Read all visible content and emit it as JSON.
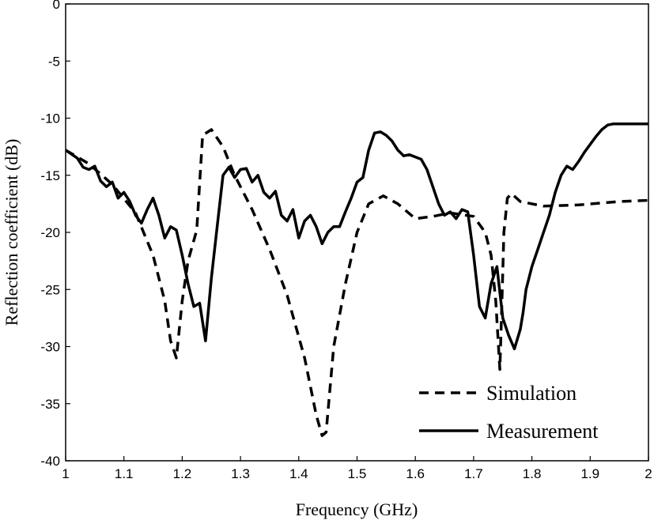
{
  "chart_data": {
    "type": "line",
    "title": "",
    "xlabel": "Frequency (GHz)",
    "ylabel": "Reflection coefficient (dB)",
    "xlim": [
      1,
      2
    ],
    "ylim": [
      -40,
      0
    ],
    "xticks": [
      1,
      1.1,
      1.2,
      1.3,
      1.4,
      1.5,
      1.6,
      1.7,
      1.8,
      1.9,
      2
    ],
    "xtick_labels": [
      "1",
      "1.1",
      "1.2",
      "1.3",
      "1.4",
      "1.5",
      "1.6",
      "1.7",
      "1.8",
      "1.9",
      "2"
    ],
    "yticks": [
      0,
      -5,
      -10,
      -15,
      -20,
      -25,
      -30,
      -35,
      -40
    ],
    "ytick_labels": [
      "0",
      "-5",
      "-10",
      "-15",
      "-20",
      "-25",
      "-30",
      "-35",
      "-40"
    ],
    "grid": false,
    "legend_position": "bottom-right",
    "series": [
      {
        "name": "Simulation",
        "style": "dashed",
        "color": "#000000",
        "x": [
          1.0,
          1.04,
          1.08,
          1.12,
          1.15,
          1.17,
          1.18,
          1.19,
          1.2,
          1.21,
          1.225,
          1.235,
          1.25,
          1.27,
          1.29,
          1.32,
          1.35,
          1.38,
          1.41,
          1.43,
          1.44,
          1.447,
          1.46,
          1.48,
          1.5,
          1.52,
          1.545,
          1.57,
          1.6,
          1.63,
          1.66,
          1.7,
          1.72,
          1.73,
          1.738,
          1.745,
          1.748,
          1.752,
          1.758,
          1.765,
          1.78,
          1.82,
          1.88,
          1.95,
          2.0
        ],
        "y": [
          -12.8,
          -14.0,
          -15.8,
          -18.3,
          -22.0,
          -26.0,
          -29.5,
          -31.0,
          -26.0,
          -22.5,
          -19.8,
          -11.5,
          -11.0,
          -12.5,
          -15.0,
          -18.0,
          -21.5,
          -25.5,
          -31.0,
          -36.0,
          -37.8,
          -37.5,
          -30.0,
          -24.5,
          -20.0,
          -17.5,
          -16.8,
          -17.5,
          -18.8,
          -18.6,
          -18.3,
          -18.6,
          -20.0,
          -22.0,
          -26.0,
          -32.0,
          -27.0,
          -20.0,
          -17.0,
          -16.6,
          -17.3,
          -17.7,
          -17.6,
          -17.3,
          -17.2
        ]
      },
      {
        "name": "Measurement",
        "style": "solid",
        "color": "#000000",
        "x": [
          1.0,
          1.02,
          1.03,
          1.04,
          1.05,
          1.06,
          1.07,
          1.08,
          1.09,
          1.1,
          1.11,
          1.12,
          1.13,
          1.14,
          1.15,
          1.16,
          1.17,
          1.18,
          1.19,
          1.2,
          1.21,
          1.22,
          1.23,
          1.24,
          1.25,
          1.26,
          1.27,
          1.28,
          1.29,
          1.3,
          1.31,
          1.32,
          1.33,
          1.34,
          1.35,
          1.36,
          1.37,
          1.38,
          1.39,
          1.4,
          1.41,
          1.42,
          1.43,
          1.44,
          1.45,
          1.46,
          1.47,
          1.48,
          1.49,
          1.5,
          1.51,
          1.52,
          1.53,
          1.54,
          1.55,
          1.56,
          1.57,
          1.58,
          1.59,
          1.6,
          1.61,
          1.62,
          1.63,
          1.64,
          1.65,
          1.66,
          1.67,
          1.68,
          1.69,
          1.7,
          1.71,
          1.72,
          1.73,
          1.74,
          1.75,
          1.76,
          1.77,
          1.78,
          1.785,
          1.79,
          1.8,
          1.81,
          1.82,
          1.83,
          1.84,
          1.85,
          1.86,
          1.87,
          1.88,
          1.89,
          1.9,
          1.91,
          1.92,
          1.93,
          1.94,
          1.95,
          1.96,
          1.97,
          1.98,
          1.99,
          2.0
        ],
        "y": [
          -12.8,
          -13.5,
          -14.3,
          -14.5,
          -14.2,
          -15.5,
          -16.0,
          -15.6,
          -17.0,
          -16.5,
          -17.3,
          -18.5,
          -19.2,
          -18.0,
          -17.0,
          -18.5,
          -20.5,
          -19.5,
          -19.8,
          -22.0,
          -24.5,
          -26.5,
          -26.2,
          -29.5,
          -24.0,
          -19.5,
          -15.0,
          -14.3,
          -15.2,
          -14.5,
          -14.4,
          -15.6,
          -15.0,
          -16.5,
          -17.0,
          -16.4,
          -18.5,
          -19.0,
          -18.0,
          -20.5,
          -19.0,
          -18.5,
          -19.5,
          -21.0,
          -20.0,
          -19.5,
          -19.5,
          -18.2,
          -17.0,
          -15.6,
          -15.2,
          -12.8,
          -11.3,
          -11.2,
          -11.5,
          -12.0,
          -12.8,
          -13.3,
          -13.2,
          -13.4,
          -13.6,
          -14.5,
          -16.0,
          -17.5,
          -18.5,
          -18.2,
          -18.8,
          -18.0,
          -18.2,
          -22.0,
          -26.5,
          -27.5,
          -24.5,
          -23.0,
          -27.5,
          -29.0,
          -30.2,
          -28.5,
          -27.0,
          -25.0,
          -23.0,
          -21.5,
          -20.0,
          -18.5,
          -16.5,
          -15.0,
          -14.2,
          -14.5,
          -13.8,
          -13.0,
          -12.3,
          -11.6,
          -11.0,
          -10.6,
          -10.5,
          -10.5,
          -10.5,
          -10.5,
          -10.5,
          -10.5,
          -10.5
        ]
      }
    ]
  }
}
